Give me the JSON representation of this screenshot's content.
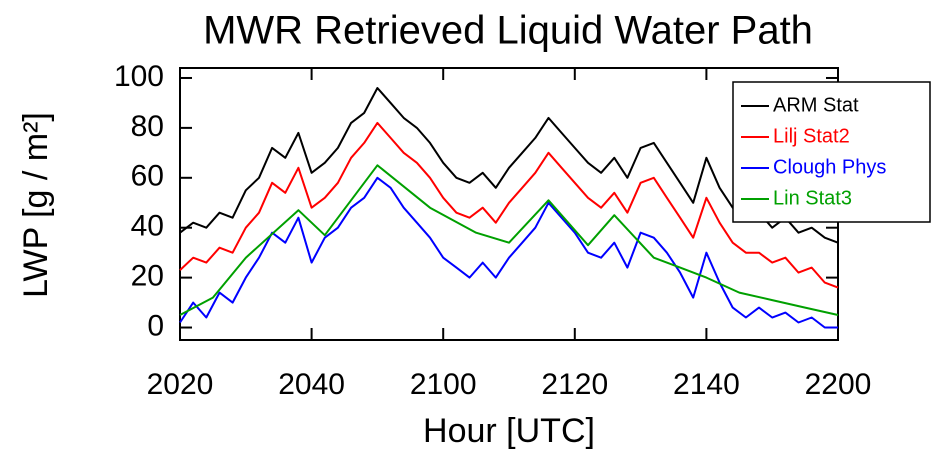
{
  "chart_data": {
    "type": "line",
    "title": "MWR Retrieved Liquid Water Path",
    "x_label": "Hour [UTC]",
    "y_label": "LWP [g / m²]",
    "xlim": [
      1220,
      1320
    ],
    "xticks": [
      {
        "value": 1220,
        "label": "2020"
      },
      {
        "value": 1240,
        "label": "2040"
      },
      {
        "value": 1260,
        "label": "2100"
      },
      {
        "value": 1280,
        "label": "2120"
      },
      {
        "value": 1300,
        "label": "2140"
      },
      {
        "value": 1320,
        "label": "2200"
      }
    ],
    "ylim": [
      -5,
      104
    ],
    "yticks": [
      0,
      20,
      40,
      60,
      80,
      100
    ],
    "grid": false,
    "legend": "upper right",
    "series": [
      {
        "name": "ARM Stat",
        "color": "#000000",
        "x": [
          1220,
          1222,
          1224,
          1226,
          1228,
          1230,
          1232,
          1234,
          1236,
          1238,
          1240,
          1242,
          1244,
          1246,
          1248,
          1250,
          1252,
          1254,
          1256,
          1258,
          1260,
          1262,
          1264,
          1266,
          1268,
          1270,
          1272,
          1274,
          1276,
          1278,
          1280,
          1282,
          1284,
          1286,
          1288,
          1290,
          1292,
          1294,
          1296,
          1298,
          1300,
          1302,
          1304,
          1306,
          1308,
          1310,
          1312,
          1314,
          1316,
          1318,
          1320
        ],
        "values": [
          38,
          42,
          40,
          46,
          44,
          55,
          60,
          72,
          68,
          78,
          62,
          66,
          72,
          82,
          86,
          96,
          90,
          84,
          80,
          74,
          66,
          60,
          58,
          62,
          56,
          64,
          70,
          76,
          84,
          78,
          72,
          66,
          62,
          68,
          60,
          72,
          74,
          66,
          58,
          50,
          68,
          56,
          48,
          44,
          46,
          40,
          44,
          38,
          40,
          36,
          34
        ]
      },
      {
        "name": "Lilj Stat2",
        "color": "#ff0000",
        "x": [
          1220,
          1222,
          1224,
          1226,
          1228,
          1230,
          1232,
          1234,
          1236,
          1238,
          1240,
          1242,
          1244,
          1246,
          1248,
          1250,
          1252,
          1254,
          1256,
          1258,
          1260,
          1262,
          1264,
          1266,
          1268,
          1270,
          1272,
          1274,
          1276,
          1278,
          1280,
          1282,
          1284,
          1286,
          1288,
          1290,
          1292,
          1294,
          1296,
          1298,
          1300,
          1302,
          1304,
          1306,
          1308,
          1310,
          1312,
          1314,
          1316,
          1318,
          1320
        ],
        "values": [
          23,
          28,
          26,
          32,
          30,
          40,
          46,
          58,
          54,
          64,
          48,
          52,
          58,
          68,
          74,
          82,
          76,
          70,
          66,
          60,
          52,
          46,
          44,
          48,
          42,
          50,
          56,
          62,
          70,
          64,
          58,
          52,
          48,
          54,
          46,
          58,
          60,
          52,
          44,
          36,
          52,
          42,
          34,
          30,
          30,
          26,
          28,
          22,
          24,
          18,
          16
        ]
      },
      {
        "name": "Clough Phys",
        "color": "#0000ff",
        "x": [
          1220,
          1222,
          1224,
          1226,
          1228,
          1230,
          1232,
          1234,
          1236,
          1238,
          1240,
          1242,
          1244,
          1246,
          1248,
          1250,
          1252,
          1254,
          1256,
          1258,
          1260,
          1262,
          1264,
          1266,
          1268,
          1270,
          1272,
          1274,
          1276,
          1278,
          1280,
          1282,
          1284,
          1286,
          1288,
          1290,
          1292,
          1294,
          1296,
          1298,
          1300,
          1302,
          1304,
          1306,
          1308,
          1310,
          1312,
          1314,
          1316,
          1318,
          1320
        ],
        "values": [
          2,
          10,
          4,
          14,
          10,
          20,
          28,
          38,
          34,
          44,
          26,
          36,
          40,
          48,
          52,
          60,
          56,
          48,
          42,
          36,
          28,
          24,
          20,
          26,
          20,
          28,
          34,
          40,
          50,
          44,
          38,
          30,
          28,
          34,
          24,
          38,
          36,
          30,
          22,
          12,
          30,
          18,
          8,
          4,
          8,
          4,
          6,
          2,
          4,
          0,
          0
        ]
      },
      {
        "name": "Lin Stat3",
        "color": "#00a000",
        "x": [
          1220,
          1225,
          1230,
          1238,
          1242,
          1250,
          1258,
          1265,
          1270,
          1276,
          1282,
          1286,
          1292,
          1296,
          1300,
          1305,
          1310,
          1315,
          1320
        ],
        "values": [
          5,
          12,
          28,
          47,
          37,
          65,
          48,
          38,
          34,
          51,
          33,
          45,
          28,
          24,
          20,
          14,
          11,
          8,
          5
        ]
      }
    ]
  }
}
